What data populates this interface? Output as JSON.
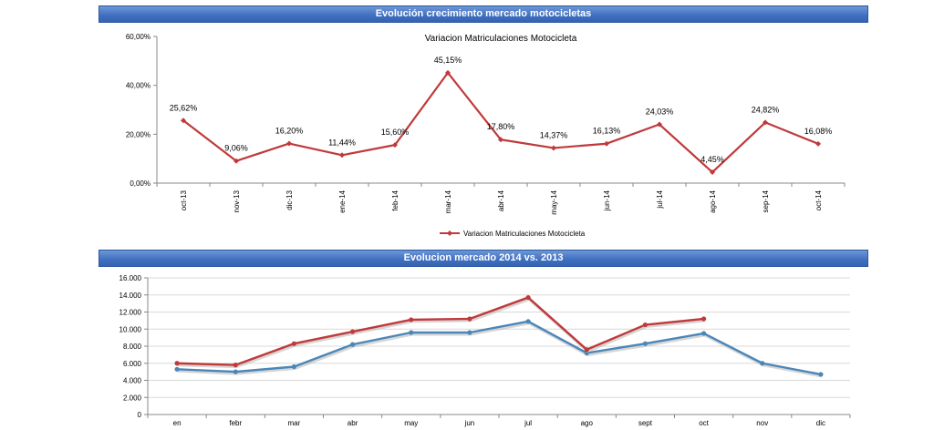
{
  "banners": {
    "top": "Evolución crecimiento mercado motocicletas",
    "bottom": "Evolucion mercado 2014 vs. 2013"
  },
  "chart_data": [
    {
      "type": "line",
      "title": "Variacion Matriculaciones Motocicleta",
      "categories": [
        "oct-13",
        "nov-13",
        "dic-13",
        "ene-14",
        "feb-14",
        "mar-14",
        "abr-14",
        "may-14",
        "jun-14",
        "jul-14",
        "ago-14",
        "sep-14",
        "oct-14"
      ],
      "series": [
        {
          "name": "Variacion Matriculaciones Motocicleta",
          "color": "#c0393b",
          "values": [
            25.62,
            9.06,
            16.2,
            11.44,
            15.6,
            45.15,
            17.8,
            14.37,
            16.13,
            24.03,
            4.45,
            24.82,
            16.08
          ],
          "labels": [
            "25,62%",
            "9,06%",
            "16,20%",
            "11,44%",
            "15,60%",
            "45,15%",
            "17,80%",
            "14,37%",
            "16,13%",
            "24,03%",
            "4,45%",
            "24,82%",
            "16,08%"
          ]
        }
      ],
      "ylim": [
        0,
        60
      ],
      "yticks": [
        "0,00%",
        "20,00%",
        "40,00%",
        "60,00%"
      ],
      "legend": "bottom"
    },
    {
      "type": "line",
      "title": "",
      "categories": [
        "en",
        "febr",
        "mar",
        "abr",
        "may",
        "jun",
        "jul",
        "ago",
        "sept",
        "oct",
        "nov",
        "dic"
      ],
      "series": [
        {
          "color": "#c0393b",
          "values": [
            6000,
            5800,
            8300,
            9700,
            11100,
            11200,
            13700,
            7600,
            10500,
            11200,
            null,
            null
          ]
        },
        {
          "color": "#4a86b8",
          "values": [
            5300,
            5000,
            5600,
            8200,
            9600,
            9600,
            10900,
            7200,
            8300,
            9500,
            6000,
            4700
          ]
        }
      ],
      "ylim": [
        0,
        16000
      ],
      "yticks": [
        "0",
        "2.000",
        "4.000",
        "6.000",
        "8.000",
        "10.000",
        "12.000",
        "14.000",
        "16.000"
      ]
    }
  ]
}
